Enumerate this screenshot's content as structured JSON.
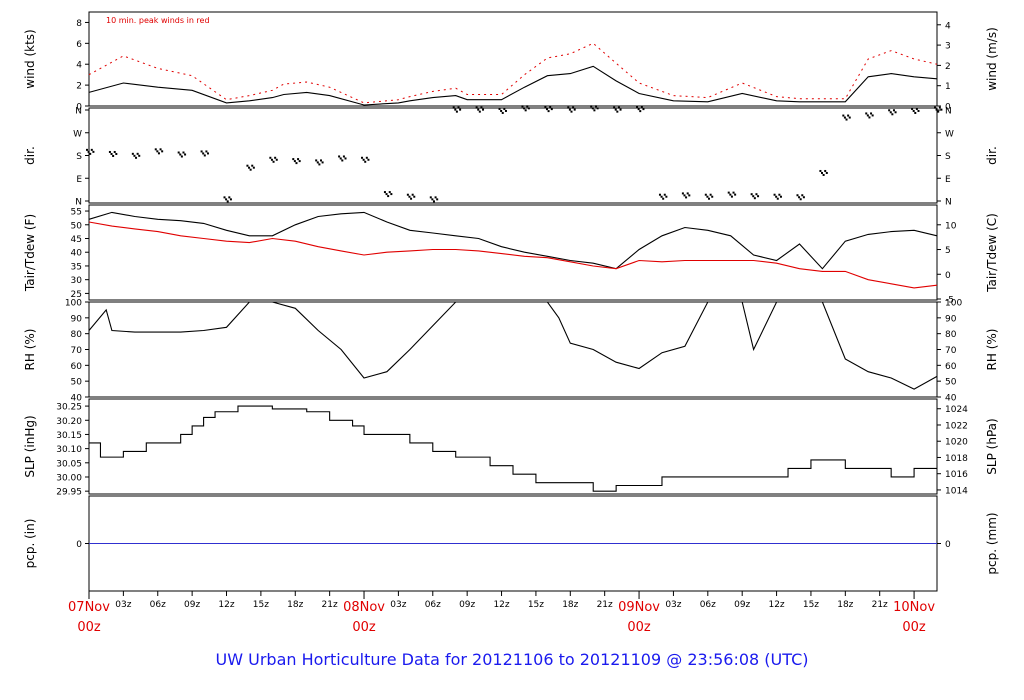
{
  "footer": "UW Urban Horticulture Data for 20121106  to  20121109 @ 23:56:08  (UTC)",
  "colors": {
    "frame": "#000000",
    "red": "#e00000",
    "blue": "#1a1aee",
    "pcp": "#3030d0"
  },
  "chart_data": [
    {
      "id": "wind",
      "type": "line",
      "ylabel": "wind (kts)",
      "ylabel_right": "wind (m/s)",
      "annotation": "10 min. peak winds in red",
      "ylim": [
        0,
        9
      ],
      "ylim_right": [
        0,
        4.63
      ],
      "yticks": [
        "0",
        "2",
        "4",
        "6",
        "8"
      ],
      "yticks_right": [
        "0",
        "1",
        "2",
        "3",
        "4"
      ],
      "x_hours": [
        0,
        3,
        6,
        9,
        12,
        14,
        16,
        17,
        19,
        21,
        24,
        27,
        28,
        30,
        32,
        33,
        36,
        38,
        40,
        42,
        44,
        46,
        48,
        51,
        54,
        57,
        60,
        62,
        64,
        66,
        68,
        70,
        72,
        74
      ],
      "series": [
        {
          "values": [
            1.3,
            2.2,
            1.8,
            1.5,
            0.3,
            0.5,
            0.8,
            1.1,
            1.3,
            1.0,
            0.1,
            0.3,
            0.5,
            0.8,
            1.0,
            0.6,
            0.6,
            1.8,
            2.9,
            3.1,
            3.8,
            2.4,
            1.2,
            0.5,
            0.4,
            1.2,
            0.5,
            0.4,
            0.4,
            0.4,
            2.8,
            3.1,
            2.8,
            2.6
          ]
        },
        {
          "role": "peak",
          "values": [
            3.0,
            4.8,
            3.6,
            2.9,
            0.6,
            1.0,
            1.5,
            2.1,
            2.3,
            1.8,
            0.3,
            0.6,
            0.9,
            1.4,
            1.7,
            1.1,
            1.1,
            3.0,
            4.6,
            5.0,
            6.0,
            4.1,
            2.2,
            1.0,
            0.8,
            2.2,
            0.9,
            0.7,
            0.7,
            0.7,
            4.5,
            5.3,
            4.5,
            4.0
          ]
        }
      ]
    },
    {
      "id": "dir",
      "type": "scatter",
      "ylabel": "dir.",
      "ylabel_right": "dir.",
      "ylim": [
        0,
        360
      ],
      "yticks": [
        "N",
        "E",
        "S",
        "W",
        "N"
      ],
      "yticks_right": [
        "N",
        "E",
        "S",
        "W",
        "N"
      ],
      "x_hours": [
        0,
        2,
        4,
        6,
        8,
        10,
        12,
        14,
        16,
        18,
        20,
        22,
        24,
        26,
        28,
        30,
        32,
        34,
        36,
        38,
        40,
        42,
        44,
        46,
        48,
        50,
        52,
        54,
        56,
        58,
        60,
        62,
        64,
        66,
        68,
        70,
        72,
        74
      ],
      "series": [
        {
          "values": [
            190,
            182,
            175,
            192,
            180,
            184,
            10,
            130,
            160,
            155,
            150,
            165,
            160,
            30,
            20,
            10,
            350,
            350,
            345,
            355,
            352,
            350,
            355,
            350,
            352,
            20,
            25,
            20,
            28,
            22,
            20,
            18,
            110,
            320,
            328,
            340,
            345,
            350
          ]
        }
      ]
    },
    {
      "id": "temp",
      "type": "line",
      "ylabel": "Tair/Tdew (F)",
      "ylabel_right": "Tair/Tdew (C)",
      "ylim": [
        22.6,
        57.2
      ],
      "ylim_right": [
        -5.2,
        14.0
      ],
      "yticks": [
        "25",
        "30",
        "35",
        "40",
        "45",
        "50",
        "55"
      ],
      "yticks_right": [
        "-5",
        "0",
        "5",
        "10"
      ],
      "x_hours": [
        0,
        2,
        4,
        6,
        8,
        10,
        12,
        14,
        16,
        18,
        20,
        22,
        24,
        26,
        28,
        30,
        32,
        34,
        36,
        38,
        40,
        42,
        44,
        46,
        48,
        50,
        52,
        54,
        56,
        58,
        60,
        62,
        64,
        66,
        68,
        70,
        72,
        74
      ],
      "series": [
        {
          "name": "Tair",
          "values": [
            52,
            54.5,
            53,
            52,
            51.5,
            50.5,
            48,
            46,
            46,
            50,
            53,
            54,
            54.5,
            51,
            48,
            47,
            46,
            45,
            42,
            40,
            38.5,
            37,
            36,
            34,
            41,
            46,
            49,
            48,
            46,
            39,
            37,
            43,
            34,
            44,
            46.5,
            47.5,
            48,
            46
          ]
        },
        {
          "role": "tdew",
          "values": [
            51,
            49.5,
            48.5,
            47.5,
            46,
            45,
            44,
            43.5,
            45,
            44,
            42,
            40.5,
            39,
            40,
            40.5,
            41,
            41,
            40.5,
            39.5,
            38.5,
            38,
            36.5,
            35,
            34,
            37,
            36.5,
            37,
            37,
            37,
            37,
            36,
            34,
            33,
            33,
            30,
            28.5,
            27,
            28
          ]
        }
      ]
    },
    {
      "id": "rh",
      "type": "line",
      "ylabel": "RH (%)",
      "ylabel_right": "RH (%)",
      "ylim": [
        40,
        100
      ],
      "yticks": [
        "40",
        "50",
        "60",
        "70",
        "80",
        "90",
        "100"
      ],
      "yticks_right": [
        "40",
        "50",
        "60",
        "70",
        "80",
        "90",
        "100"
      ],
      "x_hours": [
        0,
        1.5,
        2,
        4,
        6,
        8,
        10,
        12,
        14,
        16,
        18,
        20,
        22,
        24,
        26,
        28,
        30,
        32,
        34,
        36,
        38,
        40,
        41,
        42,
        44,
        46,
        48,
        50,
        52,
        54,
        56,
        57,
        58,
        60,
        62,
        64,
        66,
        68,
        70,
        72,
        74
      ],
      "series": [
        {
          "values": [
            82,
            95,
            82,
            81,
            81,
            81,
            82,
            84,
            100,
            100,
            96,
            82,
            70,
            52,
            56,
            70,
            85,
            100,
            100,
            100,
            100,
            100,
            90,
            74,
            70,
            62,
            58,
            68,
            72,
            100,
            100,
            100,
            70,
            100,
            100,
            100,
            64,
            56,
            52,
            45,
            53
          ]
        }
      ]
    },
    {
      "id": "slp",
      "type": "line",
      "ylabel": "SLP (inHg)",
      "ylabel_right": "SLP (hPa)",
      "ylim": [
        29.94,
        30.275
      ],
      "ylim_right": [
        1013.5,
        1025.2
      ],
      "yticks": [
        "29.95",
        "30.00",
        "30.05",
        "30.10",
        "30.15",
        "30.20",
        "30.25"
      ],
      "yticks_right": [
        "1014",
        "1016",
        "1018",
        "1020",
        "1022",
        "1024"
      ],
      "x_hours": [
        0,
        1,
        3,
        5,
        8,
        9,
        10,
        11,
        13,
        16,
        19,
        21,
        23,
        24,
        28,
        30,
        32,
        35,
        37,
        39,
        44,
        46,
        48,
        50,
        56,
        61,
        63,
        66,
        70,
        72
      ],
      "series": [
        {
          "values": [
            30.12,
            30.07,
            30.09,
            30.12,
            30.15,
            30.18,
            30.21,
            30.23,
            30.25,
            30.24,
            30.23,
            30.2,
            30.18,
            30.15,
            30.12,
            30.09,
            30.07,
            30.04,
            30.01,
            29.98,
            29.95,
            29.97,
            29.97,
            30.0,
            30.0,
            30.03,
            30.06,
            30.03,
            30.0,
            30.03
          ]
        }
      ]
    },
    {
      "id": "pcp",
      "type": "line",
      "ylabel": "pcp. (in)",
      "ylabel_right": "pcp. (mm)",
      "ylim": [
        -1,
        1
      ],
      "yticks": [
        "0"
      ],
      "yticks_right": [
        "0"
      ],
      "x_hours": [
        0,
        74
      ],
      "series": [
        {
          "values": [
            0,
            0
          ]
        }
      ]
    }
  ],
  "x_axis": {
    "range_hours": [
      0,
      74
    ],
    "minor_ticks": [
      "03z",
      "06z",
      "09z",
      "12z",
      "15z",
      "18z",
      "21z",
      "03z",
      "06z",
      "09z",
      "12z",
      "15z",
      "18z",
      "21z",
      "03z",
      "06z",
      "09z",
      "12z",
      "15z",
      "18z",
      "21z"
    ],
    "major_ticks": [
      {
        "line1": "07Nov",
        "line2": "00z",
        "highlight": true
      },
      {
        "line1": "08Nov",
        "line2": "00z",
        "highlight": false
      },
      {
        "line1": "09Nov",
        "line2": "00z",
        "highlight": false
      },
      {
        "line1": "10Nov",
        "line2": "00z",
        "highlight": true
      }
    ]
  }
}
